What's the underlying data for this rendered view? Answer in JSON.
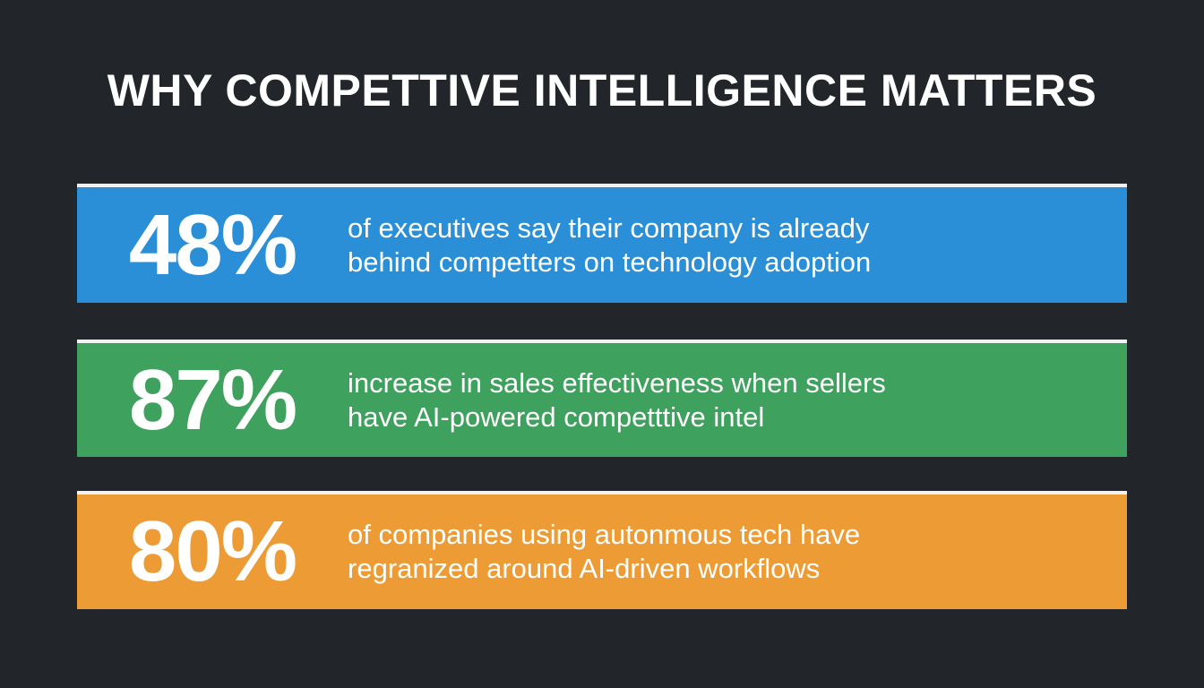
{
  "header": {
    "title": "WHY COMPETTIVE INTELLIGENCE MATTERS"
  },
  "stats": [
    {
      "value": "48%",
      "lines": [
        "of executives say their company is already",
        "behind competters on technology adoption"
      ]
    },
    {
      "value": "87%",
      "lines": [
        "increase in sales effectiveness when sellers",
        "have AI-powered competttive intel"
      ]
    },
    {
      "value": "80%",
      "lines": [
        "of companies using autonmous tech have",
        "regranized around AI-driven workflows"
      ]
    }
  ]
}
